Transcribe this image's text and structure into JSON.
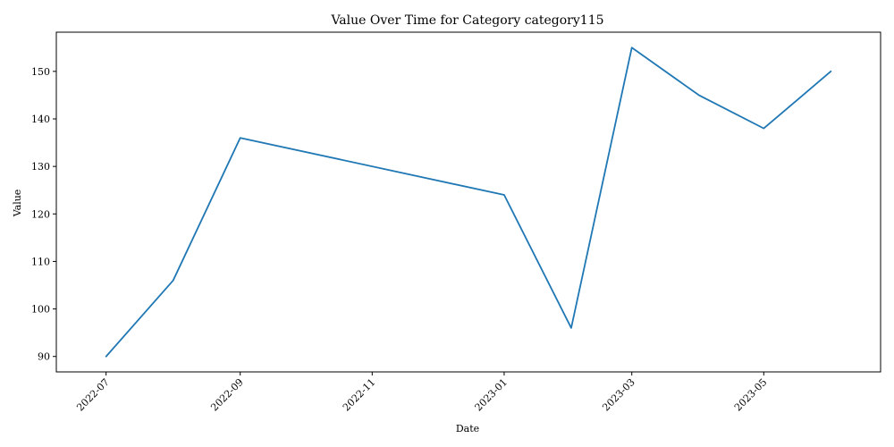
{
  "chart_data": {
    "type": "line",
    "title": "Value Over Time for Category category115",
    "xlabel": "Date",
    "ylabel": "Value",
    "x": [
      "2022-07-01",
      "2022-08-01",
      "2022-09-01",
      "2023-01-01",
      "2023-02-01",
      "2023-03-01",
      "2023-04-01",
      "2023-05-01",
      "2023-06-01"
    ],
    "series": [
      {
        "values": [
          90,
          106,
          136,
          124,
          96,
          155,
          145,
          138,
          150
        ],
        "color": "#1f77b4"
      }
    ],
    "xticks": [
      "2022-07",
      "2022-09",
      "2022-11",
      "2023-01",
      "2023-03",
      "2023-05"
    ],
    "yticks": [
      90,
      100,
      110,
      120,
      130,
      140,
      150
    ],
    "ylim": [
      86.75,
      158.25
    ],
    "xlim": [
      "2022-06-08",
      "2023-06-24"
    ],
    "grid": false
  }
}
